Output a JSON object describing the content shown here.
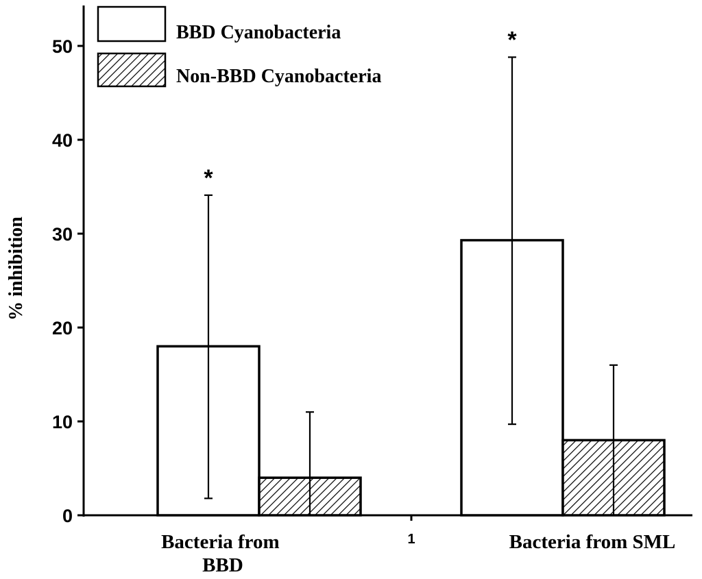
{
  "chart_data": {
    "type": "bar",
    "title": "",
    "xlabel": "",
    "ylabel": "% inhibition",
    "ylim": [
      0,
      50
    ],
    "yticks": [
      "0",
      "10",
      "20",
      "30",
      "40",
      "50"
    ],
    "categories": [
      "Bacteria from BBD",
      "Bacteria from SML"
    ],
    "x_axis_marker": "1",
    "grid": false,
    "legend_placement": "top-left",
    "series": [
      {
        "name": "BBD Cyanobacteria",
        "values": [
          18,
          29.3
        ],
        "error_low": [
          1.8,
          9.7
        ],
        "error_high": [
          34.1,
          48.8
        ],
        "significance": [
          "*",
          "*"
        ],
        "fill": "white"
      },
      {
        "name": "Non-BBD Cyanobacteria",
        "values": [
          4,
          8
        ],
        "error_low": [
          0,
          0
        ],
        "error_high": [
          11,
          16
        ],
        "significance": [
          "",
          ""
        ],
        "fill": "hatched"
      }
    ],
    "colors": {
      "line": "#000000",
      "background": "#ffffff"
    }
  }
}
